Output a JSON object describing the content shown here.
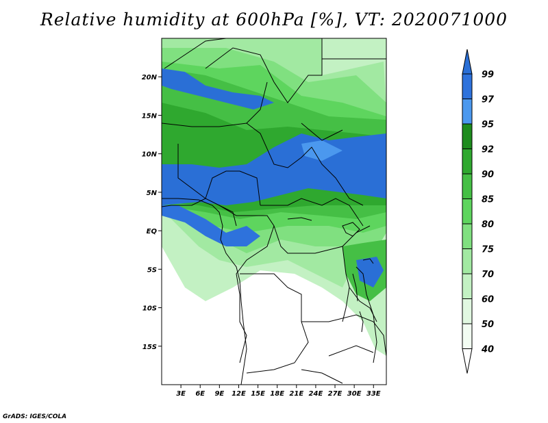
{
  "title": "Relative humidity at 600hPa [%], VT: 2020071000",
  "credit": "GrADS: IGES/COLA",
  "map": {
    "lon_ticks": [
      "3E",
      "6E",
      "9E",
      "12E",
      "15E",
      "18E",
      "21E",
      "24E",
      "27E",
      "30E",
      "33E"
    ],
    "lat_ticks": [
      "20N",
      "15N",
      "10N",
      "5N",
      "EQ",
      "5S",
      "10S",
      "15S"
    ],
    "lon_range": [
      0,
      35
    ],
    "lat_range": [
      -20,
      25
    ]
  },
  "colorbar": {
    "levels": [
      "99",
      "97",
      "95",
      "92",
      "90",
      "85",
      "80",
      "75",
      "70",
      "60",
      "50",
      "40"
    ],
    "colors": {
      "above_99": "#2a6fd6",
      "97_99": "#2e72dc",
      "95_97": "#4b98ee",
      "92_95": "#1e8c1e",
      "90_92": "#2fa82f",
      "85_90": "#45bf45",
      "80_85": "#5ed55e",
      "75_80": "#80e080",
      "70_75": "#a2e9a2",
      "60_70": "#c3f1c3",
      "50_60": "#e1f8e1",
      "40_50": "#f2fcf2",
      "below_40": "#ffffff"
    }
  }
}
